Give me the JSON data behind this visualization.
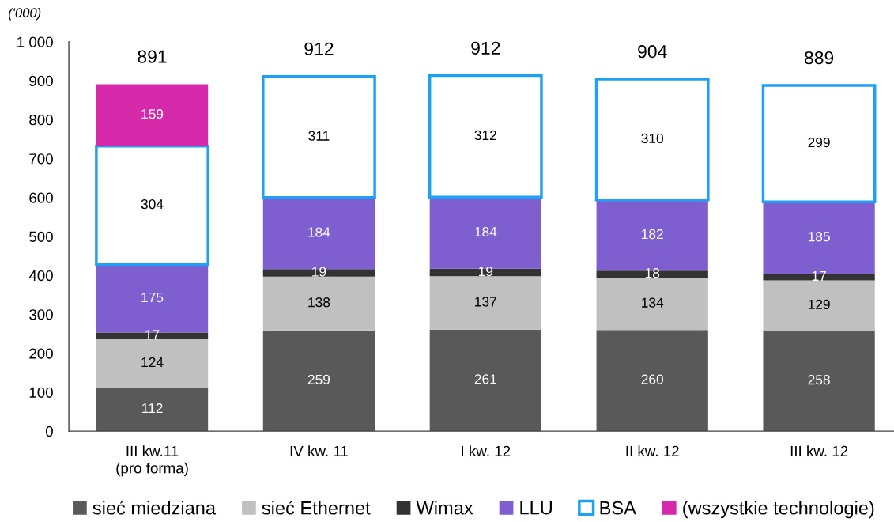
{
  "chart_data": {
    "type": "bar",
    "stacked": true,
    "categories": [
      "III kw.11\n(pro forma)",
      "IV kw. 11",
      "I kw. 12",
      "II kw. 12",
      "III kw. 12"
    ],
    "series": [
      {
        "name": "sieć miedziana",
        "color": "#595959",
        "values": [
          112,
          259,
          261,
          260,
          258
        ]
      },
      {
        "name": "sieć Ethernet",
        "color": "#c0c0c0",
        "values": [
          124,
          138,
          137,
          134,
          129
        ]
      },
      {
        "name": "Wimax",
        "color": "#333333",
        "values": [
          17,
          19,
          19,
          18,
          17
        ]
      },
      {
        "name": "LLU",
        "color": "#7f5ecf",
        "values": [
          175,
          184,
          184,
          182,
          185
        ]
      },
      {
        "name": "BSA",
        "color": "#1ea0f5",
        "line_style": "solid",
        "values": [
          304,
          311,
          312,
          310,
          299
        ]
      },
      {
        "name": "(wszystkie technologie)",
        "color": "#d62aab",
        "values": [
          159,
          null,
          null,
          null,
          null
        ]
      }
    ],
    "totals": [
      "891",
      "912",
      "912",
      "904",
      "889"
    ],
    "data_labels": true,
    "ylim": [
      0,
      1000
    ],
    "yticks": [
      0,
      100,
      200,
      300,
      400,
      500,
      600,
      700,
      800,
      900,
      {
        "value": 1000,
        "label": "1 000"
      }
    ],
    "grid": false,
    "legend": "bottom",
    "annotations": [
      "('000)"
    ]
  }
}
